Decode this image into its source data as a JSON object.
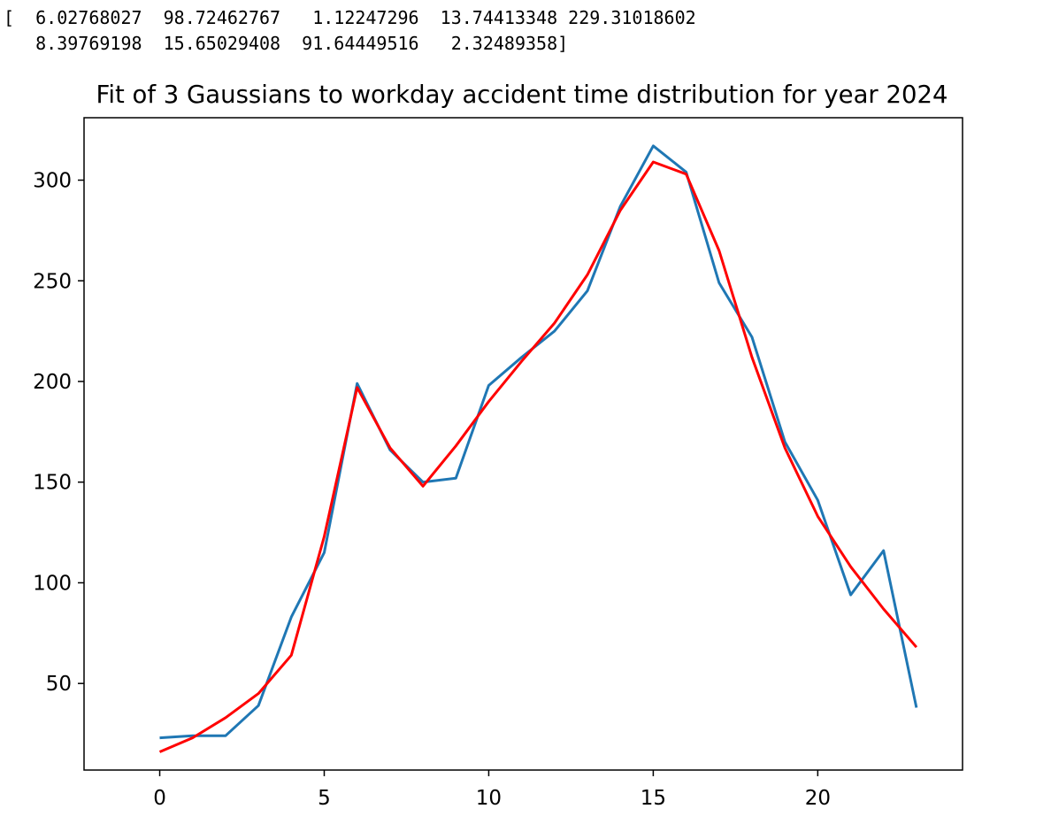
{
  "output": {
    "lines": [
      "[  6.02768027  98.72462767   1.12247296  13.74413348 229.31018602",
      "   8.39769198  15.65029408  91.64449516   2.32489358]"
    ]
  },
  "chart_data": {
    "type": "line",
    "title": "Fit of 3 Gaussians to workday accident time distribution for year 2024",
    "xlabel": "",
    "ylabel": "",
    "xlim": [
      -2.3,
      24.4
    ],
    "ylim": [
      7,
      331
    ],
    "x_ticks": [
      0,
      5,
      10,
      15,
      20
    ],
    "y_ticks": [
      50,
      100,
      150,
      200,
      250,
      300
    ],
    "grid": false,
    "x": [
      0,
      1,
      2,
      3,
      4,
      5,
      6,
      7,
      8,
      9,
      10,
      11,
      12,
      13,
      14,
      15,
      16,
      17,
      18,
      19,
      20,
      21,
      22,
      23
    ],
    "series": [
      {
        "color": "#1f77b4",
        "values": [
          23,
          24,
          24,
          39,
          83,
          115,
          199,
          166,
          150,
          152,
          198,
          212,
          225,
          245,
          287,
          317,
          304,
          249,
          222,
          170,
          141,
          94,
          116,
          38
        ]
      },
      {
        "color": "#ff0000",
        "values": [
          16,
          23,
          33,
          45,
          64,
          123,
          197,
          167,
          148,
          168,
          190,
          210,
          229,
          253,
          285,
          309,
          303,
          265,
          212,
          167,
          133,
          108,
          87,
          68
        ]
      }
    ]
  }
}
